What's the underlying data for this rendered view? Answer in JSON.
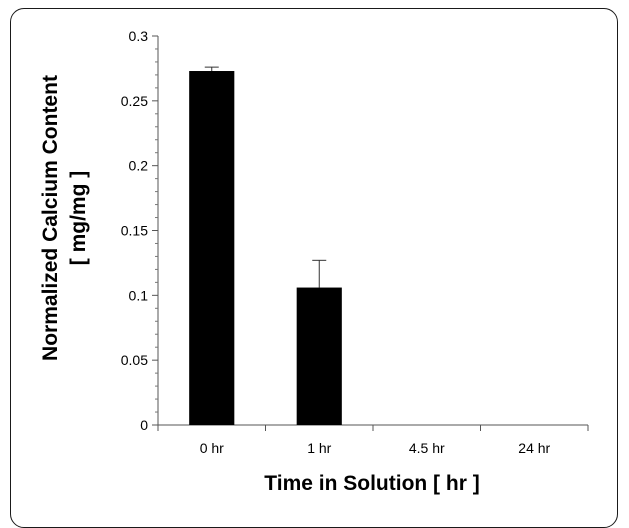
{
  "chart_data": {
    "type": "bar",
    "categories": [
      "0 hr",
      "1 hr",
      "4.5 hr",
      "24 hr"
    ],
    "values": [
      0.273,
      0.106,
      0,
      0
    ],
    "error_upper": [
      0.003,
      0.021,
      0,
      0
    ],
    "ylim": [
      0,
      0.3
    ],
    "yticks": [
      "0",
      "0.05",
      "0.1",
      "0.15",
      "0.2",
      "0.25",
      "0.3"
    ],
    "ytick_values": [
      0,
      0.05,
      0.1,
      0.15,
      0.2,
      0.25,
      0.3
    ],
    "ylabel_line1": "Normalized Calcium Content",
    "ylabel_line2": "[ mg/mg ]",
    "xlabel": "Time in Solution [ hr ]",
    "bar_color": "#000000",
    "grid": false
  }
}
